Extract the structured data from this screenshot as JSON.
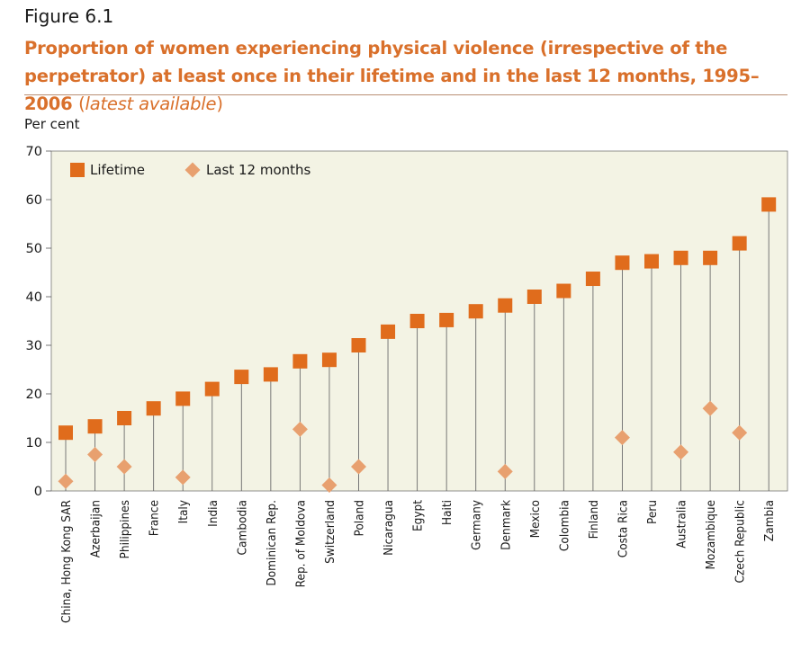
{
  "figure_label": "Figure 6.1",
  "title_main": "Proportion of women experiencing physical violence (irrespective of the perpetrator) at least once in their lifetime and in the last 12 months, 1995–2006 ",
  "title_note_open": "(",
  "title_note": "latest available",
  "title_note_close": ")",
  "colors": {
    "lifetime": "#e06c1c",
    "last12": "#e8a06f",
    "plot_bg": "#f3f3e4",
    "title": "#d9702b"
  },
  "chart_data": {
    "type": "scatter",
    "ylabel": "Per cent",
    "ylim": [
      0,
      70
    ],
    "yticks": [
      0,
      10,
      20,
      30,
      40,
      50,
      60,
      70
    ],
    "grid": false,
    "legend_position": "top-left",
    "categories": [
      "China, Hong Kong SAR",
      "Azerbaijan",
      "Philippines",
      "France",
      "Italy",
      "India",
      "Cambodia",
      "Dominican Rep.",
      "Rep. of Moldova",
      "Switzerland",
      "Poland",
      "Nicaragua",
      "Egypt",
      "Haiti",
      "Germany",
      "Denmark",
      "Mexico",
      "Colombia",
      "Finland",
      "Costa Rica",
      "Peru",
      "Australia",
      "Mozambique",
      "Czech Republic",
      "Zambia"
    ],
    "series": [
      {
        "name": "Lifetime",
        "marker": "square",
        "values": [
          12,
          13.3,
          15,
          17,
          19,
          21,
          23.5,
          24,
          26.7,
          27,
          30,
          32.8,
          35,
          35.2,
          37,
          38.2,
          40,
          41.2,
          43.7,
          47,
          47.3,
          48,
          48,
          51,
          59
        ]
      },
      {
        "name": "Last 12 months",
        "marker": "diamond",
        "values": [
          2,
          7.5,
          5,
          null,
          2.8,
          null,
          null,
          null,
          12.7,
          1.2,
          5,
          null,
          null,
          null,
          null,
          4,
          null,
          null,
          null,
          11,
          null,
          8,
          17,
          12,
          null
        ]
      }
    ]
  }
}
